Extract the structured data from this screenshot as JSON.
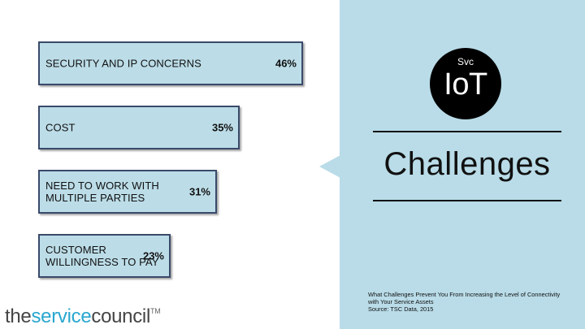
{
  "chart_data": {
    "type": "bar",
    "orientation": "horizontal",
    "categories": [
      "SECURITY AND IP CONCERNS",
      "COST",
      "NEED TO WORK WITH MULTIPLE PARTIES",
      "CUSTOMER WILLINGNESS TO PAY"
    ],
    "values": [
      46,
      35,
      31,
      23
    ],
    "value_labels": [
      "46%",
      "35%",
      "31%",
      "23%"
    ],
    "xlim": [
      0,
      46
    ],
    "grid": false,
    "colors": {
      "bar_fill": "#bcdde8",
      "bar_border": "#3a4a6a"
    }
  },
  "panel": {
    "badge_small": "Svc",
    "badge_large": "IoT",
    "heading": "Challenges",
    "source_line1": "What Challenges Prevent You From Increasing the Level of Connectivity with Your Service Assets",
    "source_line2": "Source: TSC Data, 2015",
    "color": "#b9dce8"
  },
  "logo": {
    "part1": "the",
    "part2": "service",
    "part3": "council",
    "tm": "TM"
  }
}
